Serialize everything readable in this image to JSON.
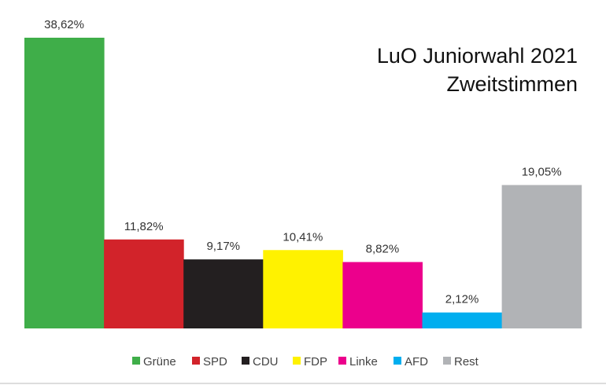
{
  "chart_data": {
    "type": "bar",
    "title": "LuO Juniorwahl 2021",
    "subtitle": "Zweitstimmen",
    "categories": [
      "Grüne",
      "SPD",
      "CDU",
      "FDP",
      "Linke",
      "AFD",
      "Rest"
    ],
    "values": [
      38.62,
      11.82,
      9.17,
      10.41,
      8.82,
      2.12,
      19.05
    ],
    "data_labels": [
      "38,62%",
      "11,82%",
      "9,17%",
      "10,41%",
      "8,82%",
      "2,12%",
      "19,05%"
    ],
    "colors": [
      "#3fae49",
      "#d2232a",
      "#231f20",
      "#fff200",
      "#ec008c",
      "#00aeef",
      "#b1b3b6"
    ],
    "xlabel": "",
    "ylabel": "",
    "ylim": [
      0,
      38.62
    ],
    "grid": false,
    "legend_position": "bottom"
  }
}
